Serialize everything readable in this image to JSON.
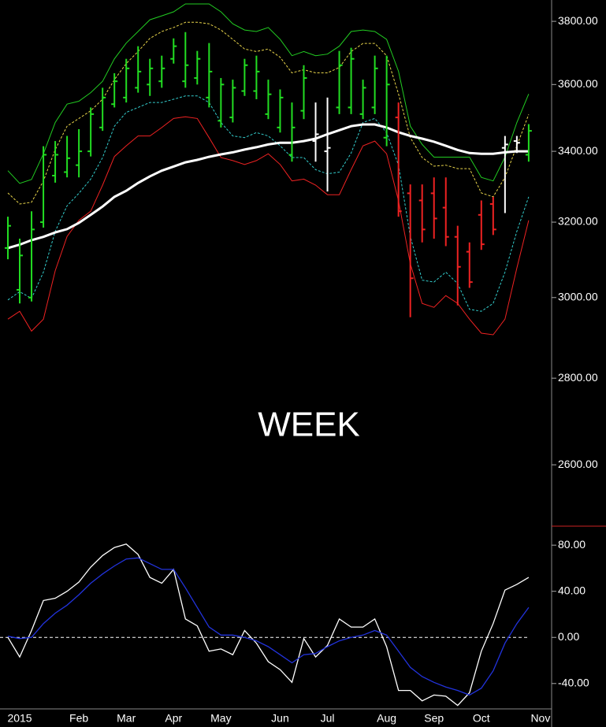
{
  "chart_data": [
    {
      "type": "ohlc",
      "annotation": "WEEK",
      "ylog": true,
      "ylim": [
        2467,
        3870
      ],
      "yticks": [
        {
          "value": 2600,
          "label": "2600.00"
        },
        {
          "value": 2800,
          "label": "2800.00"
        },
        {
          "value": 3000,
          "label": "3000.00"
        },
        {
          "value": 3200,
          "label": "3200.00"
        },
        {
          "value": 3400,
          "label": "3400.00"
        },
        {
          "value": 3600,
          "label": "3600.00"
        },
        {
          "value": 3800,
          "label": "3800.00"
        }
      ],
      "open": [
        3130,
        3020,
        3000,
        3200,
        3330,
        3340,
        3360,
        3400,
        3470,
        3540,
        3560,
        3590,
        3600,
        3610,
        3680,
        3610,
        3620,
        3560,
        3490,
        3500,
        3580,
        3580,
        3510,
        3470,
        3390,
        3520,
        3430,
        3400,
        3530,
        3530,
        3510,
        3530,
        3440,
        3500,
        3280,
        3260,
        3280,
        3240,
        3160,
        3120,
        3220,
        3250,
        3410,
        3430,
        3390,
        null
      ],
      "high": [
        3215,
        3155,
        3230,
        3415,
        3430,
        3445,
        3465,
        3530,
        3590,
        3635,
        3680,
        3720,
        3680,
        3690,
        3745,
        3765,
        3705,
        3730,
        3620,
        3615,
        3680,
        3690,
        3615,
        3585,
        3545,
        3660,
        3545,
        3560,
        3705,
        3715,
        3615,
        3690,
        3690,
        3545,
        3305,
        3305,
        3325,
        3325,
        3190,
        3145,
        3260,
        3270,
        3445,
        3445,
        3480,
        null
      ],
      "low": [
        3100,
        2985,
        2990,
        3185,
        3310,
        3325,
        3325,
        3385,
        3460,
        3530,
        3545,
        3575,
        3565,
        3590,
        3665,
        3590,
        3600,
        3530,
        3470,
        3485,
        3565,
        3555,
        3495,
        3455,
        3370,
        3495,
        3370,
        3285,
        3510,
        3510,
        3495,
        3510,
        3415,
        3215,
        2950,
        3145,
        3155,
        3135,
        2980,
        3025,
        3125,
        3165,
        3225,
        3395,
        3370,
        null
      ],
      "close": [
        3190,
        3110,
        3180,
        3390,
        3390,
        3380,
        3400,
        3510,
        3560,
        3610,
        3650,
        3640,
        3650,
        3650,
        3720,
        3660,
        3680,
        3640,
        3600,
        3590,
        3660,
        3640,
        3570,
        3560,
        3470,
        3620,
        3450,
        3410,
        3660,
        3680,
        3590,
        3650,
        3600,
        3230,
        3050,
        3180,
        3210,
        3160,
        3080,
        3040,
        3140,
        3180,
        3420,
        3425,
        3460,
        null
      ],
      "colors": [
        "#22dd22",
        "#22dd22",
        "#22dd22",
        "#22dd22",
        "#22dd22",
        "#22dd22",
        "#22dd22",
        "#22dd22",
        "#22dd22",
        "#22dd22",
        "#22dd22",
        "#22dd22",
        "#22dd22",
        "#22dd22",
        "#22dd22",
        "#22dd22",
        "#22dd22",
        "#22dd22",
        "#22dd22",
        "#22dd22",
        "#22dd22",
        "#22dd22",
        "#22dd22",
        "#22dd22",
        "#22dd22",
        "#22dd22",
        "#ffffff",
        "#ffffff",
        "#22dd22",
        "#22dd22",
        "#22dd22",
        "#22dd22",
        "#22dd22",
        "#ee2222",
        "#ee2222",
        "#ee2222",
        "#ee2222",
        "#ee2222",
        "#ee2222",
        "#ee2222",
        "#ee2222",
        "#ee2222",
        "#ffffff",
        "#ffffff",
        "#22dd22",
        null
      ],
      "series": [
        {
          "color": "#22cc22",
          "style": "solid",
          "line_width": 1,
          "values": [
            3344,
            3308,
            3319,
            3393,
            3485,
            3540,
            3549,
            3575,
            3610,
            3680,
            3730,
            3767,
            3805,
            3818,
            3831,
            3857,
            3857,
            3857,
            3831,
            3792,
            3772,
            3767,
            3780,
            3742,
            3690,
            3703,
            3690,
            3695,
            3720,
            3767,
            3772,
            3767,
            3742,
            3641,
            3474,
            3420,
            3383,
            3383,
            3383,
            3383,
            3325,
            3315,
            3383,
            3485,
            3571,
            null
          ]
        },
        {
          "color": "#e8d44a",
          "style": "dashed",
          "line_width": 1,
          "values": [
            3281,
            3250,
            3255,
            3315,
            3405,
            3474,
            3497,
            3520,
            3555,
            3615,
            3665,
            3703,
            3745,
            3767,
            3780,
            3797,
            3797,
            3792,
            3772,
            3742,
            3711,
            3703,
            3711,
            3685,
            3636,
            3646,
            3636,
            3636,
            3653,
            3703,
            3729,
            3729,
            3690,
            3571,
            3440,
            3382,
            3357,
            3360,
            3350,
            3350,
            3281,
            3270,
            3325,
            3416,
            3509,
            null
          ]
        },
        {
          "color": "#33cccc",
          "style": "dashed",
          "line_width": 1,
          "values": [
            2994,
            3015,
            2998,
            3066,
            3175,
            3245,
            3280,
            3320,
            3382,
            3474,
            3515,
            3530,
            3545,
            3545,
            3555,
            3565,
            3565,
            3545,
            3485,
            3445,
            3440,
            3455,
            3445,
            3416,
            3382,
            3382,
            3347,
            3335,
            3340,
            3395,
            3485,
            3497,
            3455,
            3360,
            3161,
            3045,
            3040,
            3066,
            3036,
            2970,
            2965,
            2985,
            3066,
            3175,
            3270,
            null
          ]
        },
        {
          "color": "#ee2222",
          "style": "solid",
          "line_width": 1,
          "values": [
            2945,
            2965,
            2915,
            2945,
            3070,
            3161,
            3205,
            3230,
            3303,
            3385,
            3416,
            3445,
            3445,
            3470,
            3497,
            3502,
            3497,
            3440,
            3382,
            3373,
            3362,
            3373,
            3393,
            3362,
            3315,
            3320,
            3303,
            3276,
            3276,
            3347,
            3416,
            3430,
            3393,
            3259,
            3088,
            2985,
            2975,
            3005,
            2985,
            2945,
            2910,
            2906,
            2945,
            3077,
            3205,
            null
          ]
        },
        {
          "color": "#ffffff",
          "style": "solid",
          "line_width": 3,
          "values": [
            3130,
            3139,
            3151,
            3160,
            3172,
            3181,
            3198,
            3220,
            3243,
            3270,
            3287,
            3309,
            3328,
            3344,
            3356,
            3368,
            3375,
            3384,
            3391,
            3397,
            3405,
            3412,
            3420,
            3425,
            3425,
            3430,
            3437,
            3450,
            3462,
            3474,
            3479,
            3479,
            3470,
            3456,
            3445,
            3437,
            3428,
            3416,
            3404,
            3395,
            3393,
            3393,
            3397,
            3400,
            3400,
            null
          ]
        }
      ]
    },
    {
      "type": "line",
      "categories": [
        null,
        "2015",
        null,
        null,
        null,
        null,
        "Feb",
        null,
        null,
        null,
        "Mar",
        null,
        null,
        null,
        "Apr",
        null,
        null,
        null,
        "May",
        null,
        null,
        null,
        null,
        "Jun",
        null,
        null,
        null,
        "Jul",
        null,
        null,
        null,
        null,
        "Aug",
        null,
        null,
        null,
        "Sep",
        null,
        null,
        null,
        "Oct",
        null,
        null,
        null,
        null,
        "Nov"
      ],
      "ylim": [
        -62,
        96.5
      ],
      "yticks": [
        {
          "value": -40,
          "label": "-40.00"
        },
        {
          "value": 0,
          "label": "0.00"
        },
        {
          "value": 40,
          "label": "40.00"
        },
        {
          "value": 80,
          "label": "80.00"
        }
      ],
      "hline": 0,
      "series": [
        {
          "color": "#ffffff",
          "values": [
            0,
            -17,
            6,
            32,
            34,
            40,
            48,
            61,
            71,
            78,
            81,
            72,
            52,
            47,
            59,
            16,
            10,
            -12,
            -10,
            -15,
            6,
            -5,
            -21,
            -28,
            -39,
            -1,
            -17,
            -7,
            16,
            9,
            9,
            16,
            -8,
            -46,
            -46,
            -55,
            -50,
            -51,
            -59,
            -48,
            -12,
            12,
            41,
            46,
            52,
            null
          ]
        },
        {
          "color": "#2233dd",
          "values": [
            1,
            -1,
            0,
            12,
            21,
            28,
            37,
            47,
            55,
            62,
            68,
            69,
            64,
            59,
            59,
            43,
            26,
            9,
            2,
            2,
            0,
            -3,
            -8,
            -15,
            -22,
            -15,
            -14,
            -8,
            -3,
            0,
            2,
            6,
            2,
            -12,
            -26,
            -34,
            -39,
            -43,
            -46,
            -50,
            -44,
            -29,
            -5,
            12,
            26,
            null
          ]
        }
      ]
    }
  ]
}
